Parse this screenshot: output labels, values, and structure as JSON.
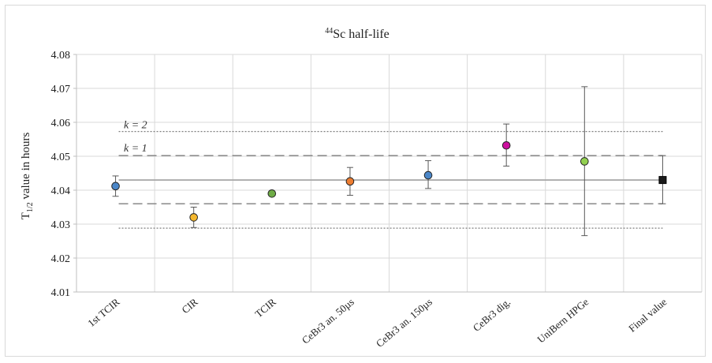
{
  "chart_data": {
    "type": "scatter",
    "title_iso": "44",
    "title_rest": "Sc half-life",
    "ylabel_main": "T",
    "ylabel_sub": "1/2",
    "ylabel_rest": " value in hours",
    "ylim": [
      4.01,
      4.08
    ],
    "y_ticks": [
      "4.01",
      "4.02",
      "4.03",
      "4.04",
      "4.05",
      "4.06",
      "4.07",
      "4.08"
    ],
    "y_tick_values": [
      4.01,
      4.02,
      4.03,
      4.04,
      4.05,
      4.06,
      4.07,
      4.08
    ],
    "grid": true,
    "categories": [
      "1st TCIR",
      "CIR",
      "TCIR",
      "CeBr3 an. 50µs",
      "CeBr3 an. 150µs",
      "CeBr3 dig.",
      "UniBern HPGe",
      "Final value"
    ],
    "points": [
      {
        "value": 4.0412,
        "err_low": 4.0382,
        "err_high": 4.0442,
        "color": "#4a86c8",
        "marker": "circle"
      },
      {
        "value": 4.032,
        "err_low": 4.029,
        "err_high": 4.035,
        "color": "#f5b82e",
        "marker": "circle"
      },
      {
        "value": 4.039,
        "err_low": 4.039,
        "err_high": 4.039,
        "color": "#6fac46",
        "marker": "circle"
      },
      {
        "value": 4.0426,
        "err_low": 4.0385,
        "err_high": 4.0467,
        "color": "#ed7d31",
        "marker": "circle"
      },
      {
        "value": 4.0444,
        "err_low": 4.0405,
        "err_high": 4.0487,
        "color": "#4a86c8",
        "marker": "circle"
      },
      {
        "value": 4.0532,
        "err_low": 4.0471,
        "err_high": 4.0595,
        "color": "#cc0f9e",
        "marker": "circle"
      },
      {
        "value": 4.0485,
        "err_low": 4.0266,
        "err_high": 4.0705,
        "color": "#92d050",
        "marker": "circle"
      },
      {
        "value": 4.043,
        "err_low": 4.036,
        "err_high": 4.0502,
        "color": "#1a1a1a",
        "marker": "square"
      }
    ],
    "reference": {
      "mean": 4.043,
      "k1_low": 4.036,
      "k1_high": 4.0502,
      "k2_low": 4.0288,
      "k2_high": 4.0573
    },
    "annotations": {
      "k2": "k = 2",
      "k1": "k = 1"
    },
    "colors": {
      "grid": "#d9d9d9",
      "mean_line": "#a6a6a6",
      "k1_line": "#7f7f7f",
      "k2_line": "#7f7f7f",
      "errorbar": "#595959"
    }
  }
}
